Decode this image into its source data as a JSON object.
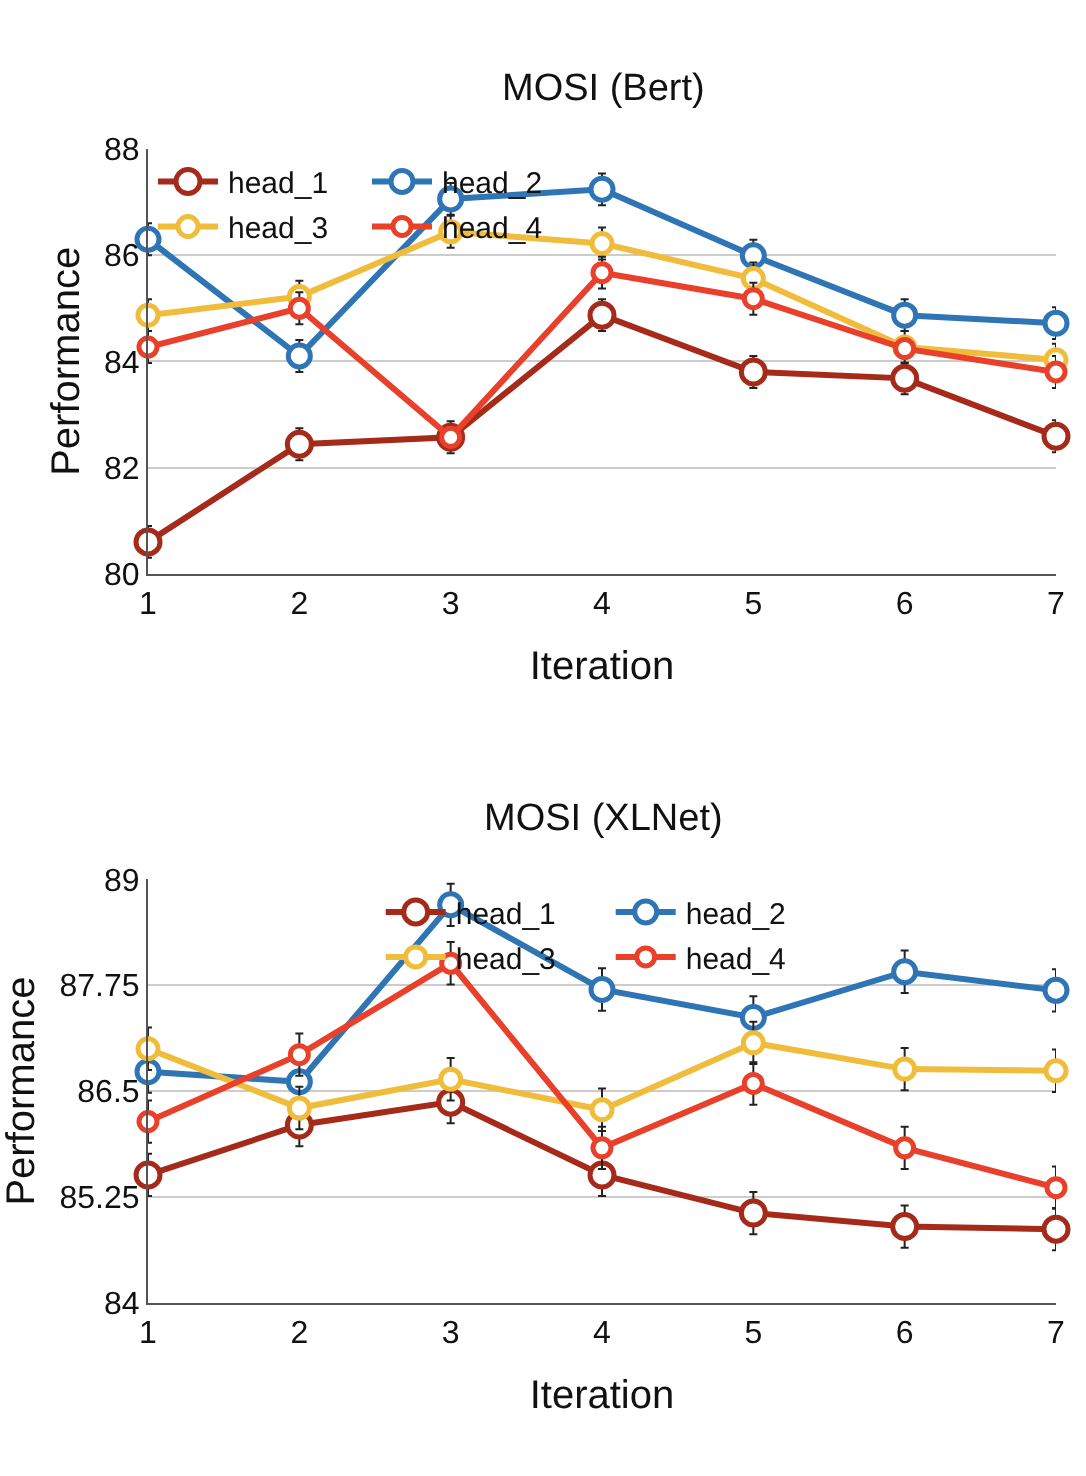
{
  "chart_data": [
    {
      "type": "line",
      "title": "MOSI (Bert)",
      "xlabel": "Iteration",
      "ylabel": "Performance",
      "x": [
        1,
        2,
        3,
        4,
        5,
        6,
        7
      ],
      "xlim": [
        1,
        7
      ],
      "xticks": [
        1,
        2,
        3,
        4,
        5,
        6,
        7
      ],
      "ylim": [
        80,
        88
      ],
      "yticks": [
        80,
        82,
        84,
        86,
        88
      ],
      "grid": "y",
      "legend": "top",
      "marker": "circle",
      "line_style": "solid",
      "series": [
        {
          "name": "head_1",
          "color": "#a52a1a",
          "values": [
            80.6,
            82.44,
            82.57,
            84.87,
            83.8,
            83.68,
            82.59
          ],
          "errors": [
            0.3,
            0.3,
            0.3,
            0.3,
            0.3,
            0.3,
            0.3
          ]
        },
        {
          "name": "head_2",
          "color": "#2f75b5",
          "values": [
            86.3,
            84.1,
            87.06,
            87.24,
            85.99,
            84.87,
            84.72
          ],
          "errors": [
            0.3,
            0.3,
            0.3,
            0.3,
            0.3,
            0.3,
            0.3
          ]
        },
        {
          "name": "head_3",
          "color": "#f0bc3c",
          "values": [
            84.87,
            85.22,
            86.44,
            86.22,
            85.56,
            84.27,
            84.03
          ],
          "errors": [
            0.3,
            0.3,
            0.3,
            0.3,
            0.3,
            0.3,
            0.3
          ]
        },
        {
          "name": "head_4",
          "color": "#e8402a",
          "values": [
            84.27,
            85.0,
            82.57,
            85.67,
            85.18,
            84.24,
            83.8
          ],
          "errors": [
            0.3,
            0.3,
            null,
            0.3,
            0.3,
            null,
            0.3
          ]
        }
      ]
    },
    {
      "type": "line",
      "title": "MOSI (XLNet)",
      "xlabel": "Iteration",
      "ylabel": "Performance",
      "x": [
        1,
        2,
        3,
        4,
        5,
        6,
        7
      ],
      "xlim": [
        1,
        7
      ],
      "xticks": [
        1,
        2,
        3,
        4,
        5,
        6,
        7
      ],
      "ylim": [
        84,
        89
      ],
      "yticks": [
        84,
        85.25,
        86.5,
        87.75,
        89
      ],
      "grid": "y",
      "legend": "top right",
      "marker": "circle",
      "line_style": "solid",
      "series": [
        {
          "name": "head_1",
          "color": "#a52a1a",
          "values": [
            85.51,
            86.1,
            86.37,
            85.51,
            85.06,
            84.9,
            84.87
          ],
          "errors": [
            0.25,
            0.25,
            0.25,
            0.25,
            0.25,
            0.25,
            0.25
          ]
        },
        {
          "name": "head_2",
          "color": "#2f75b5",
          "values": [
            86.73,
            86.61,
            88.7,
            87.7,
            87.37,
            87.91,
            87.69
          ],
          "errors": [
            0.25,
            null,
            0.25,
            0.25,
            0.25,
            0.25,
            0.25
          ]
        },
        {
          "name": "head_3",
          "color": "#f0bc3c",
          "values": [
            87.0,
            86.3,
            86.64,
            86.28,
            87.07,
            86.76,
            86.74
          ],
          "errors": [
            0.25,
            0.25,
            0.25,
            0.25,
            0.25,
            0.25,
            0.25
          ]
        },
        {
          "name": "head_4",
          "color": "#e8402a",
          "values": [
            86.14,
            86.93,
            88.01,
            85.83,
            86.59,
            85.83,
            85.36
          ],
          "errors": [
            0.25,
            0.25,
            0.25,
            0.25,
            0.25,
            0.25,
            0.25
          ]
        }
      ]
    }
  ]
}
